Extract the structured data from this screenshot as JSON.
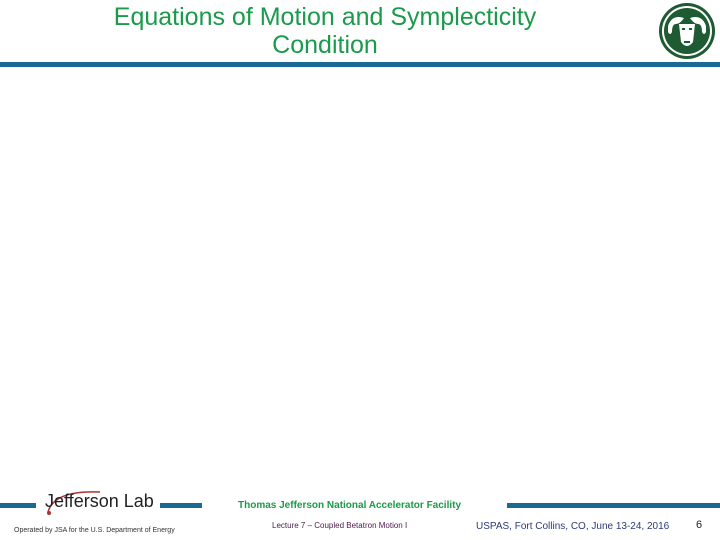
{
  "slide": {
    "title_line1": "Equations of Motion and Symplecticity",
    "title_line2": "Condition",
    "logo": "csu-ram-logo",
    "accent": "#1a6a96",
    "title_color": "#1a9a4a"
  },
  "footer": {
    "lab_logo_text": "Jefferson Lab",
    "operated_by": "Operated by JSA for the U.S. Department of Energy",
    "facility": "Thomas Jefferson National Accelerator Facility",
    "lecture": "Lecture 7 – Coupled Betatron Motion I",
    "venue": "USPAS, Fort Collins, CO, June 13-24, 2016",
    "page": "6"
  }
}
